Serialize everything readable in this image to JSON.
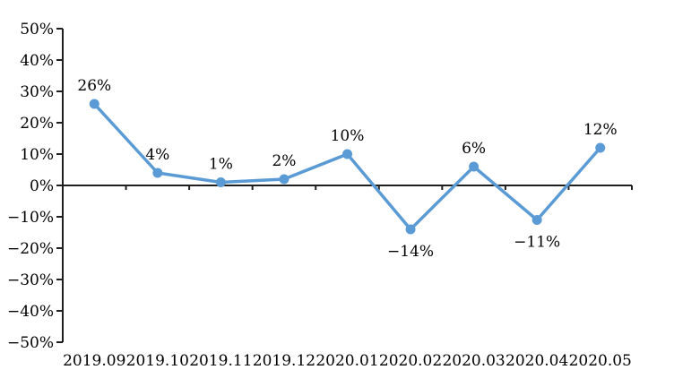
{
  "chart_data": {
    "type": "line",
    "title": "",
    "xlabel": "",
    "ylabel": "",
    "categories": [
      "2019.09",
      "2019.10",
      "2019.11",
      "2019.12",
      "2020.01",
      "2020.02",
      "2020.03",
      "2020.04",
      "2020.05"
    ],
    "series": [
      {
        "name": "",
        "values": [
          26,
          4,
          1,
          2,
          10,
          -14,
          6,
          -11,
          12
        ],
        "data_labels": [
          "26%",
          "4%",
          "1%",
          "2%",
          "10%",
          "−14%",
          "6%",
          "−11%",
          "12%"
        ]
      }
    ],
    "y_tick_values": [
      50,
      40,
      30,
      20,
      10,
      0,
      -10,
      -20,
      -30,
      -40,
      -50
    ],
    "y_tick_labels": [
      "50%",
      "40%",
      "30%",
      "20%",
      "10%",
      "0%",
      "−10%",
      "−20%",
      "−30%",
      "−40%",
      "−50%"
    ],
    "ylim": [
      -50,
      50
    ],
    "grid": false,
    "legend": "none",
    "colors": {
      "line": "#5B9BD5",
      "marker": "#5B9BD5",
      "axis": "#1f1f1f",
      "text": "#000000",
      "background": "#ffffff"
    }
  }
}
